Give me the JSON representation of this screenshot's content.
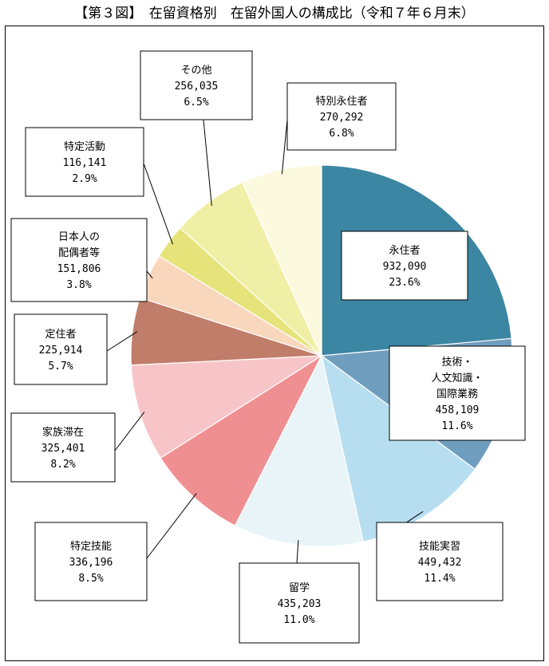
{
  "title": "【第３図】　在留資格別　在留外国人の構成比（令和７年６月末）",
  "colors": {
    "永住者": "#3b86a3",
    "技術・人文知識・国際業務": "#6f9dbd",
    "技能実習": "#b6def0",
    "留学": "#e8f4f8",
    "特定技能": "#f08f92",
    "家族滞在": "#f7c5c8",
    "定住者": "#c07d6a",
    "日本人の配偶者等": "#f8d7bc",
    "特定活動": "#e6e37a",
    "その他": "#f0efa6",
    "特別永住者": "#fbf9de"
  },
  "chart_data": {
    "type": "pie",
    "title": "【第３図】　在留資格別　在留外国人の構成比（令和７年６月末）",
    "start": "12 o'clock",
    "direction": "clockwise",
    "slices": [
      {
        "label": "永住者",
        "lines": [
          "永住者"
        ],
        "value": 932090,
        "value_text": "932,090",
        "percent": 23.6,
        "percent_text": "23.6%"
      },
      {
        "label": "技術・人文知識・国際業務",
        "lines": [
          "技術・",
          "人文知識・",
          "国際業務"
        ],
        "value": 458109,
        "value_text": "458,109",
        "percent": 11.6,
        "percent_text": "11.6%"
      },
      {
        "label": "技能実習",
        "lines": [
          "技能実習"
        ],
        "value": 449432,
        "value_text": "449,432",
        "percent": 11.4,
        "percent_text": "11.4%"
      },
      {
        "label": "留学",
        "lines": [
          "留学"
        ],
        "value": 435203,
        "value_text": "435,203",
        "percent": 11.0,
        "percent_text": "11.0%"
      },
      {
        "label": "特定技能",
        "lines": [
          "特定技能"
        ],
        "value": 336196,
        "value_text": "336,196",
        "percent": 8.5,
        "percent_text": "8.5%"
      },
      {
        "label": "家族滞在",
        "lines": [
          "家族滞在"
        ],
        "value": 325401,
        "value_text": "325,401",
        "percent": 8.2,
        "percent_text": "8.2%"
      },
      {
        "label": "定住者",
        "lines": [
          "定住者"
        ],
        "value": 225914,
        "value_text": "225,914",
        "percent": 5.7,
        "percent_text": "5.7%"
      },
      {
        "label": "日本人の配偶者等",
        "lines": [
          "日本人の",
          "配偶者等"
        ],
        "value": 151806,
        "value_text": "151,806",
        "percent": 3.8,
        "percent_text": "3.8%"
      },
      {
        "label": "特定活動",
        "lines": [
          "特定活動"
        ],
        "value": 116141,
        "value_text": "116,141",
        "percent": 2.9,
        "percent_text": "2.9%"
      },
      {
        "label": "その他",
        "lines": [
          "その他"
        ],
        "value": 256035,
        "value_text": "256,035",
        "percent": 6.5,
        "percent_text": "6.5%"
      },
      {
        "label": "特別永住者",
        "lines": [
          "特別永住者"
        ],
        "value": 270292,
        "value_text": "270,292",
        "percent": 6.8,
        "percent_text": "6.8%"
      }
    ]
  }
}
